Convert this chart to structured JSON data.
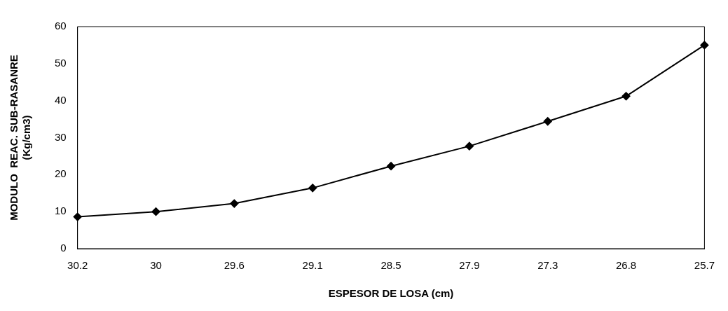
{
  "chart_data": {
    "type": "line",
    "xlabel": "ESPESOR DE LOSA (cm)",
    "ylabel": "MODULO  REAC. SUB-RASANRE\n(Kg/cm3)",
    "categories": [
      "30.2",
      "30",
      "29.6",
      "29.1",
      "28.5",
      "27.9",
      "27.3",
      "26.8",
      "25.7"
    ],
    "series": [
      {
        "color": "#000000",
        "values": [
          8.6,
          10.0,
          12.2,
          16.4,
          22.3,
          27.7,
          34.4,
          41.2,
          55.0
        ]
      }
    ],
    "ylim": [
      0,
      60
    ],
    "yticks": [
      0,
      10,
      20,
      30,
      40,
      50,
      60
    ],
    "grid": false,
    "legend": false,
    "marker": "diamond",
    "line_style": "solid"
  }
}
